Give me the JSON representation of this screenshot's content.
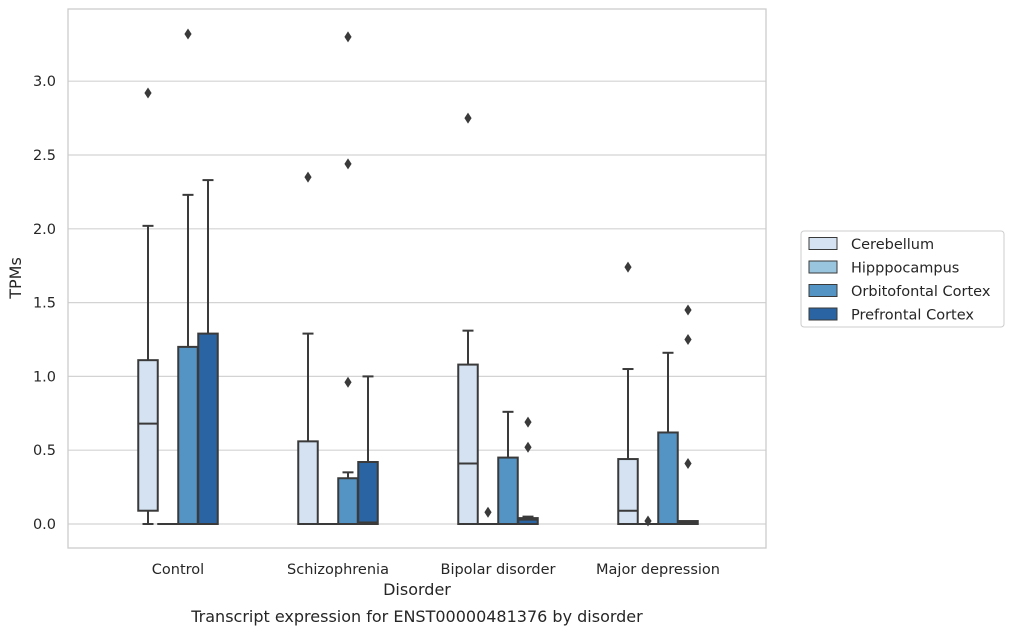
{
  "chart_data": {
    "type": "box",
    "caption": "Transcript expression for ENST00000481376 by disorder",
    "xlabel": "Disorder",
    "ylabel": "TPMs",
    "ylim": [
      -0.16,
      3.5
    ],
    "yticks": [
      "0.0",
      "0.5",
      "1.0",
      "1.5",
      "2.0",
      "2.5",
      "3.0"
    ],
    "grid": "horizontal",
    "legend_position": "right",
    "categories": [
      "Control",
      "Schizophrenia",
      "Bipolar disorder",
      "Major depression"
    ],
    "series": [
      {
        "name": "Cerebellum",
        "color": "#d4e2f1",
        "boxes": [
          {
            "q1": 0.09,
            "median": 0.68,
            "q3": 1.11,
            "whisker_low": 0.0,
            "whisker_high": 2.02,
            "outliers": [
              2.92
            ]
          },
          {
            "q1": 0.0,
            "median": 0.0,
            "q3": 0.56,
            "whisker_low": 0.0,
            "whisker_high": 1.29,
            "outliers": [
              2.35
            ]
          },
          {
            "q1": 0.0,
            "median": 0.41,
            "q3": 1.08,
            "whisker_low": 0.0,
            "whisker_high": 1.31,
            "outliers": [
              2.75
            ]
          },
          {
            "q1": 0.0,
            "median": 0.09,
            "q3": 0.44,
            "whisker_low": 0.0,
            "whisker_high": 1.05,
            "outliers": [
              1.74
            ]
          }
        ]
      },
      {
        "name": "Hipppocampus",
        "color": "#9ac5df",
        "boxes": [
          {
            "q1": 0.0,
            "median": 0.0,
            "q3": 0.0,
            "whisker_low": 0.0,
            "whisker_high": 0.0,
            "outliers": []
          },
          {
            "q1": 0.0,
            "median": 0.0,
            "q3": 0.0,
            "whisker_low": 0.0,
            "whisker_high": 0.0,
            "outliers": []
          },
          {
            "q1": 0.0,
            "median": 0.0,
            "q3": 0.0,
            "whisker_low": 0.0,
            "whisker_high": 0.0,
            "outliers": [
              0.08
            ]
          },
          {
            "q1": 0.0,
            "median": 0.0,
            "q3": 0.0,
            "whisker_low": 0.0,
            "whisker_high": 0.0,
            "outliers": [
              0.02
            ]
          }
        ]
      },
      {
        "name": "Orbitofontal Cortex",
        "color": "#5494c4",
        "boxes": [
          {
            "q1": 0.0,
            "median": 0.0,
            "q3": 1.2,
            "whisker_low": 0.0,
            "whisker_high": 2.23,
            "outliers": [
              3.32
            ]
          },
          {
            "q1": 0.0,
            "median": 0.0,
            "q3": 0.31,
            "whisker_low": 0.0,
            "whisker_high": 0.35,
            "outliers": [
              0.96,
              2.44,
              3.3
            ]
          },
          {
            "q1": 0.0,
            "median": 0.0,
            "q3": 0.45,
            "whisker_low": 0.0,
            "whisker_high": 0.76,
            "outliers": []
          },
          {
            "q1": 0.0,
            "median": 0.0,
            "q3": 0.62,
            "whisker_low": 0.0,
            "whisker_high": 1.16,
            "outliers": []
          }
        ]
      },
      {
        "name": "Prefrontal Cortex",
        "color": "#2a64a3",
        "boxes": [
          {
            "q1": 0.0,
            "median": 0.0,
            "q3": 1.29,
            "whisker_low": 0.0,
            "whisker_high": 2.33,
            "outliers": []
          },
          {
            "q1": 0.0,
            "median": 0.01,
            "q3": 0.42,
            "whisker_low": 0.0,
            "whisker_high": 1.0,
            "outliers": []
          },
          {
            "q1": 0.0,
            "median": 0.03,
            "q3": 0.04,
            "whisker_low": 0.0,
            "whisker_high": 0.05,
            "outliers": [
              0.52,
              0.69
            ]
          },
          {
            "q1": 0.0,
            "median": 0.01,
            "q3": 0.02,
            "whisker_low": 0.0,
            "whisker_high": 0.02,
            "outliers": [
              0.41,
              1.25,
              1.45
            ]
          }
        ]
      }
    ]
  },
  "colors": {
    "grid": "#d3d3d3",
    "frame": "#cccccc",
    "box_edge": "#3a3a3a",
    "outlier": "#3a3a3a"
  }
}
